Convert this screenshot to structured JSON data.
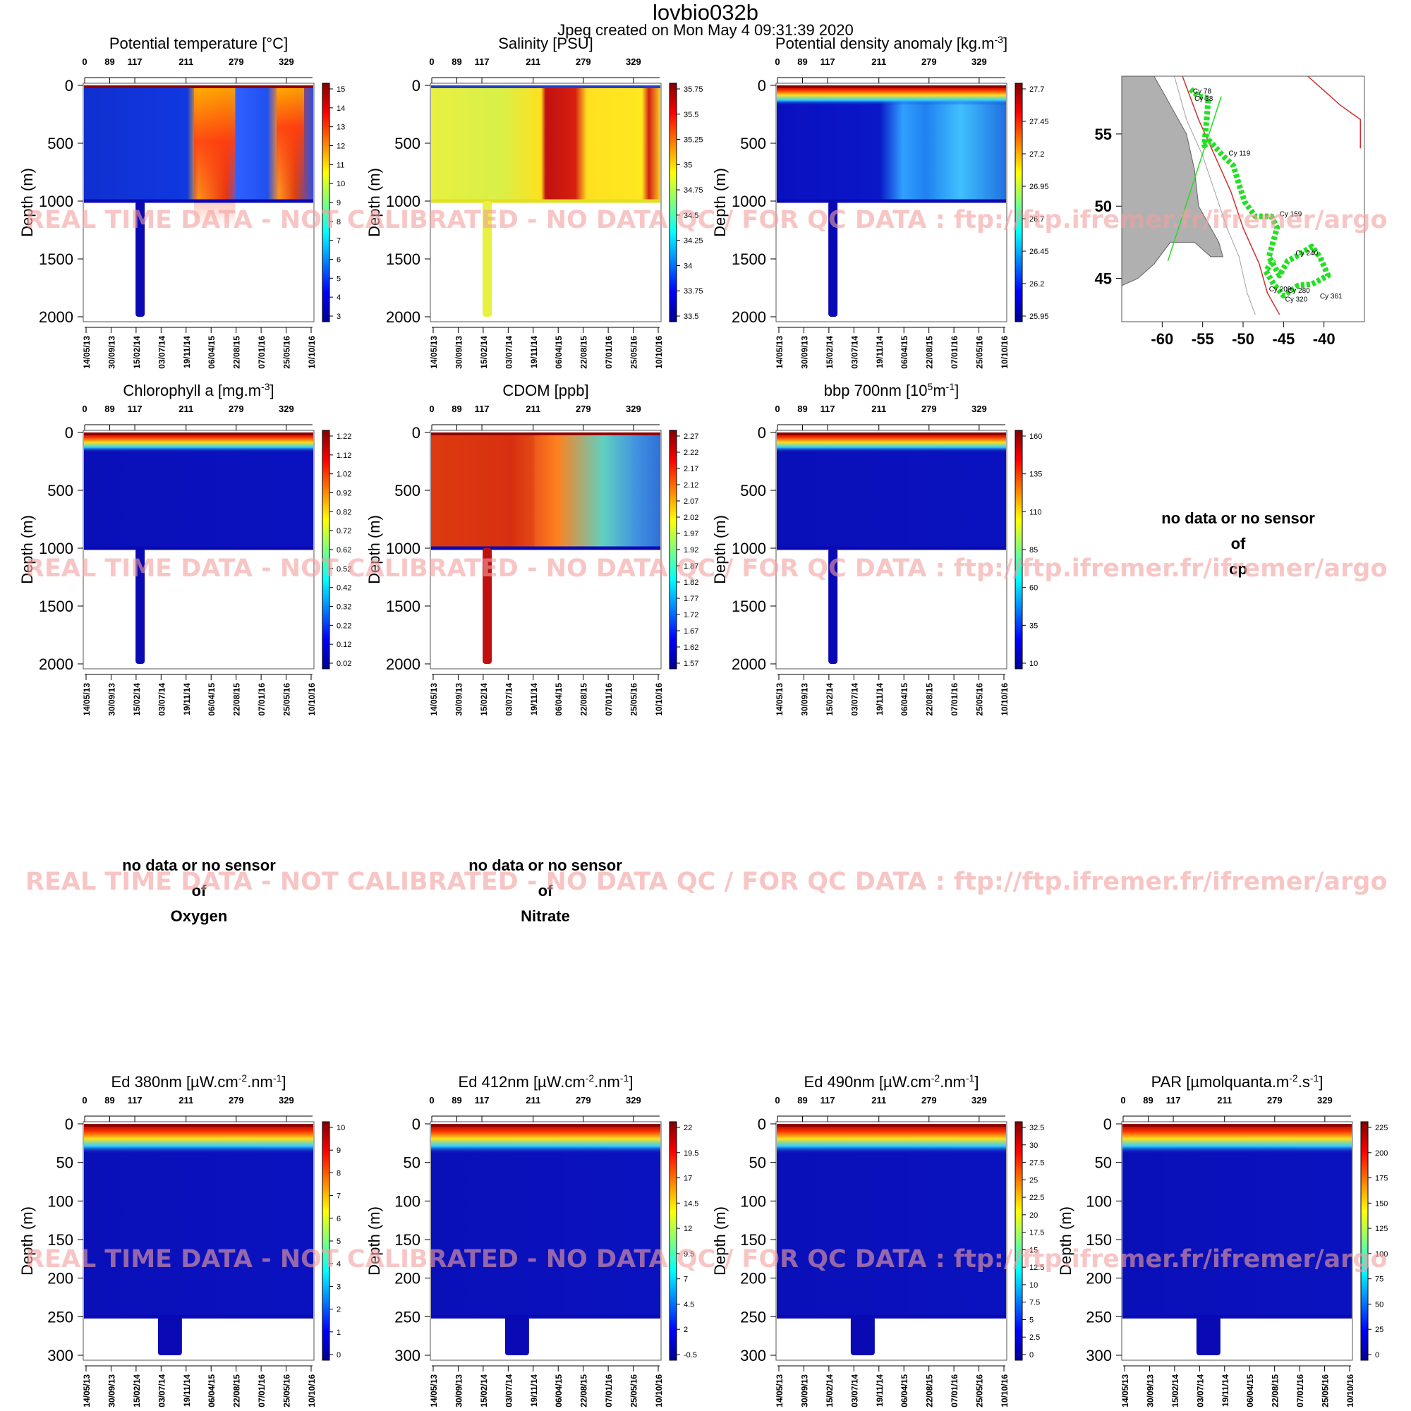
{
  "header": {
    "title": "lovbio032b",
    "subtitle": "Jpeg created on  Mon May  4 09:31:39 2020"
  },
  "watermark": "REAL TIME DATA - NOT CALIBRATED - NO DATA QC   /  FOR QC DATA : ftp://ftp.ifremer.fr/ifremer/argo",
  "date_ticks": [
    "14/05/13",
    "30/09/13",
    "15/02/14",
    "03/07/14",
    "19/11/14",
    "06/04/15",
    "22/08/15",
    "07/01/16",
    "25/05/16",
    "10/10/16"
  ],
  "cycle_ticks": [
    "0",
    "89",
    "117",
    "211",
    "279",
    "329"
  ],
  "depth_label": "Depth (m)",
  "no_data": {
    "line1": "no data or no sensor",
    "line2": "of",
    "cp": "cp",
    "oxygen": "Oxygen",
    "nitrate": "Nitrate"
  },
  "chart_data": [
    {
      "id": "temp",
      "type": "heatmap",
      "title": "Potential temperature [°C]",
      "ylim": [
        0,
        2000
      ],
      "y_ticks": [
        "0",
        "500",
        "1000",
        "1500",
        "2000"
      ],
      "colorbar": [
        "15",
        "14",
        "13",
        "12",
        "11",
        "10",
        "9",
        "8",
        "7",
        "6",
        "5",
        "4",
        "3"
      ]
    },
    {
      "id": "sal",
      "type": "heatmap",
      "title": "Salinity [PSU]",
      "ylim": [
        0,
        2000
      ],
      "y_ticks": [
        "0",
        "500",
        "1000",
        "1500",
        "2000"
      ],
      "colorbar": [
        "35.75",
        "35.5",
        "35.25",
        "35",
        "34.75",
        "34.5",
        "34.25",
        "34",
        "33.75",
        "33.5"
      ]
    },
    {
      "id": "dens",
      "type": "heatmap",
      "title": "Potential density anomaly [kg.m",
      "title_sup": "-3",
      "title_end": "]",
      "ylim": [
        0,
        2000
      ],
      "y_ticks": [
        "0",
        "500",
        "1000",
        "1500",
        "2000"
      ],
      "colorbar": [
        "27.7",
        "27.45",
        "27.2",
        "26.95",
        "26.7",
        "26.45",
        "26.2",
        "25.95"
      ]
    },
    {
      "id": "chl",
      "type": "heatmap",
      "title": "Chlorophyll a [mg.m",
      "title_sup": "-3",
      "title_end": "]",
      "ylim": [
        0,
        2000
      ],
      "y_ticks": [
        "0",
        "500",
        "1000",
        "1500",
        "2000"
      ],
      "colorbar": [
        "1.22",
        "1.12",
        "1.02",
        "0.92",
        "0.82",
        "0.72",
        "0.62",
        "0.52",
        "0.42",
        "0.32",
        "0.22",
        "0.12",
        "0.02"
      ]
    },
    {
      "id": "cdom",
      "type": "heatmap",
      "title": "CDOM  [ppb]",
      "ylim": [
        0,
        2000
      ],
      "y_ticks": [
        "0",
        "500",
        "1000",
        "1500",
        "2000"
      ],
      "colorbar": [
        "2.27",
        "2.22",
        "2.17",
        "2.12",
        "2.07",
        "2.02",
        "1.97",
        "1.92",
        "1.87",
        "1.82",
        "1.77",
        "1.72",
        "1.67",
        "1.62",
        "1.57"
      ]
    },
    {
      "id": "bbp",
      "type": "heatmap",
      "title": "bbp 700nm [10",
      "title_sup": "5",
      "title_mid": "m",
      "title_sup2": "-1",
      "title_end": "]",
      "ylim": [
        0,
        2000
      ],
      "y_ticks": [
        "0",
        "500",
        "1000",
        "1500",
        "2000"
      ],
      "colorbar": [
        "160",
        "135",
        "110",
        "85",
        "60",
        "35",
        "10"
      ]
    },
    {
      "id": "ed380",
      "type": "heatmap",
      "title": "Ed 380nm [µW.cm",
      "title_sup": "-2",
      "title_mid": ".nm",
      "title_sup2": "-1",
      "title_end": "]",
      "ylim": [
        0,
        300
      ],
      "y_ticks": [
        "0",
        "50",
        "100",
        "150",
        "200",
        "250",
        "300"
      ],
      "colorbar": [
        "10",
        "9",
        "8",
        "7",
        "6",
        "5",
        "4",
        "3",
        "2",
        "1",
        "0"
      ]
    },
    {
      "id": "ed412",
      "type": "heatmap",
      "title": "Ed 412nm [µW.cm",
      "title_sup": "-2",
      "title_mid": ".nm",
      "title_sup2": "-1",
      "title_end": "]",
      "ylim": [
        0,
        300
      ],
      "y_ticks": [
        "0",
        "50",
        "100",
        "150",
        "200",
        "250",
        "300"
      ],
      "colorbar": [
        "22",
        "19.5",
        "17",
        "14.5",
        "12",
        "9.5",
        "7",
        "4.5",
        "2",
        "-0.5"
      ]
    },
    {
      "id": "ed490",
      "type": "heatmap",
      "title": "Ed 490nm [µW.cm",
      "title_sup": "-2",
      "title_mid": ".nm",
      "title_sup2": "-1",
      "title_end": "]",
      "ylim": [
        0,
        300
      ],
      "y_ticks": [
        "0",
        "50",
        "100",
        "150",
        "200",
        "250",
        "300"
      ],
      "colorbar": [
        "32.5",
        "30",
        "27.5",
        "25",
        "22.5",
        "20",
        "17.5",
        "15",
        "12.5",
        "10",
        "7.5",
        "5",
        "2.5",
        "0"
      ]
    },
    {
      "id": "par",
      "type": "heatmap",
      "title": "PAR [µmolquanta.m",
      "title_sup": "-2",
      "title_mid": ".s",
      "title_sup2": "-1",
      "title_end": "]",
      "ylim": [
        0,
        300
      ],
      "y_ticks": [
        "0",
        "50",
        "100",
        "150",
        "200",
        "250",
        "300"
      ],
      "colorbar": [
        "225",
        "200",
        "175",
        "150",
        "125",
        "100",
        "75",
        "50",
        "25",
        "0"
      ]
    },
    {
      "id": "map",
      "type": "scatter",
      "x_ticks": [
        "-60",
        "-55",
        "-50",
        "-45",
        "-40"
      ],
      "y_ticks": [
        "55",
        "50",
        "45"
      ],
      "cycle_labels": [
        "Cy 78",
        "Cy 38",
        "Cy 119",
        "Cy 159",
        "Cy 240",
        "Cy 209",
        "Cy 280",
        "Cy 320",
        "Cy 361"
      ]
    }
  ],
  "colors": {
    "deep": "#0a0ab4",
    "accent_green": "#22e022",
    "coast": "#d03030"
  }
}
